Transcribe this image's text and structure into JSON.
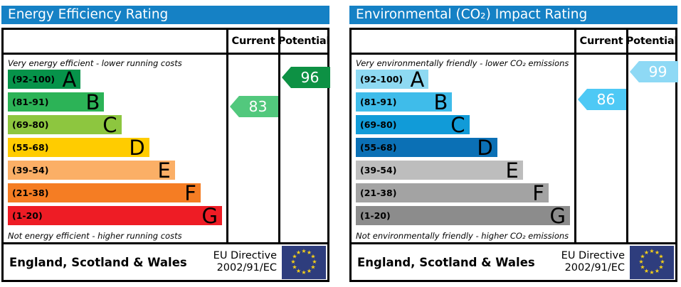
{
  "theme": {
    "header_bg": "#1581c5",
    "border": "#000000",
    "eu_flag_bg": "#2e3d7d",
    "eu_star_color": "#f7d117"
  },
  "flag": {
    "star_glyph": "★"
  },
  "panels": {
    "energy": {
      "title": "Energy Efficiency Rating",
      "columns": {
        "current": "Current",
        "potential": "Potential"
      },
      "top_caption": "Very energy efficient - lower running costs",
      "bottom_caption": "Not energy efficient - higher running costs",
      "bands": [
        {
          "range": "(92-100)",
          "letter": "A",
          "color": "#06934a"
        },
        {
          "range": "(81-91)",
          "letter": "B",
          "color": "#2cb357"
        },
        {
          "range": "(69-80)",
          "letter": "C",
          "color": "#8dc63f"
        },
        {
          "range": "(55-68)",
          "letter": "D",
          "color": "#ffcc00"
        },
        {
          "range": "(39-54)",
          "letter": "E",
          "color": "#fbaf66"
        },
        {
          "range": "(21-38)",
          "letter": "F",
          "color": "#f57d23"
        },
        {
          "range": "(1-20)",
          "letter": "G",
          "color": "#ee1c25"
        }
      ],
      "current": {
        "value": "83",
        "color": "#52c87d"
      },
      "potential": {
        "value": "96",
        "color": "#0d9144"
      },
      "footer": {
        "region": "England, Scotland & Wales",
        "directive_line1": "EU Directive",
        "directive_line2": "2002/91/EC"
      }
    },
    "environmental": {
      "title": "Environmental (CO₂) Impact Rating",
      "columns": {
        "current": "Current",
        "potential": "Potential"
      },
      "top_caption": "Very environmentally friendly - lower CO₂ emissions",
      "bottom_caption": "Not environmentally friendly - higher CO₂ emissions",
      "bands": [
        {
          "range": "(92-100)",
          "letter": "A",
          "color": "#8ed9f2"
        },
        {
          "range": "(81-91)",
          "letter": "B",
          "color": "#3fbcea"
        },
        {
          "range": "(69-80)",
          "letter": "C",
          "color": "#119bd8"
        },
        {
          "range": "(55-68)",
          "letter": "D",
          "color": "#0b70b5"
        },
        {
          "range": "(39-54)",
          "letter": "E",
          "color": "#bdbdbd"
        },
        {
          "range": "(21-38)",
          "letter": "F",
          "color": "#a3a3a3"
        },
        {
          "range": "(1-20)",
          "letter": "G",
          "color": "#8c8c8c"
        }
      ],
      "current": {
        "value": "86",
        "color": "#4ec9f5"
      },
      "potential": {
        "value": "99",
        "color": "#8ed9f5"
      },
      "footer": {
        "region": "England, Scotland & Wales",
        "directive_line1": "EU Directive",
        "directive_line2": "2002/91/EC"
      }
    }
  },
  "chart_data": [
    {
      "type": "bar",
      "title": "Energy Efficiency Rating",
      "categories": [
        "A (92-100)",
        "B (81-91)",
        "C (69-80)",
        "D (55-68)",
        "E (39-54)",
        "F (21-38)",
        "G (1-20)"
      ],
      "values": [
        34,
        45,
        53,
        66,
        78,
        90,
        100
      ],
      "series": [
        {
          "name": "Current",
          "values": [
            83
          ],
          "band": "B"
        },
        {
          "name": "Potential",
          "values": [
            96
          ],
          "band": "A"
        }
      ],
      "xlabel": "",
      "ylabel": "",
      "legend_position": "right columns (Current / Potential)"
    },
    {
      "type": "bar",
      "title": "Environmental (CO₂) Impact Rating",
      "categories": [
        "A (92-100)",
        "B (81-91)",
        "C (69-80)",
        "D (55-68)",
        "E (39-54)",
        "F (21-38)",
        "G (1-20)"
      ],
      "values": [
        34,
        45,
        53,
        66,
        78,
        90,
        100
      ],
      "series": [
        {
          "name": "Current",
          "values": [
            86
          ],
          "band": "B"
        },
        {
          "name": "Potential",
          "values": [
            99
          ],
          "band": "A"
        }
      ],
      "xlabel": "",
      "ylabel": "",
      "legend_position": "right columns (Current / Potential)"
    }
  ]
}
